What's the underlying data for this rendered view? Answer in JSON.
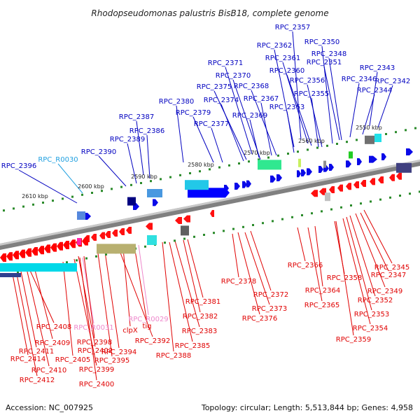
{
  "title": "Rhodopseudomonas palustris BisB18, complete genome",
  "accession": "Accession: NC_007925",
  "summary": "Topology: circular; Length: 5,513,844 bp; Genes: 4,958",
  "colors": {
    "forward_label": "#0000c0",
    "reverse_label": "#e00000",
    "rna_forward": "#20a0e0",
    "rna_reverse": "#ee88cc",
    "backbone": "#808080"
  },
  "scale_labels": [
    "2550 kbp",
    "2560 kbp",
    "2570 kbp",
    "2580 kbp",
    "2590 kbp",
    "2600 kbp",
    "2610 kbp"
  ],
  "top_labels": [
    "RPC_2357",
    "RPC_2350",
    "RPC_2362",
    "RPC_2348",
    "RPC_2361",
    "RPC_2351",
    "RPC_2371",
    "RPC_2360",
    "RPC_2343",
    "RPC_2370",
    "RPC_2356",
    "RPC_2346",
    "RPC_2342",
    "RPC_2375",
    "RPC_2368",
    "RPC_2344",
    "RPC_2374",
    "RPC_2355",
    "RPC_2380",
    "RPC_2367",
    "RPC_2363",
    "RPC_2379",
    "RPC_2369",
    "RPC_2387",
    "RPC_2377",
    "RPC_2386",
    "RPC_2389",
    "RPC_2390",
    "RPC_R0030",
    "RPC_2396"
  ],
  "bottom_labels": [
    "RPC_2345",
    "RPC_2366",
    "RPC_2347",
    "RPC_2358",
    "RPC_2378",
    "RPC_2364",
    "RPC_2349",
    "RPC_2372",
    "RPC_2352",
    "RPC_2381",
    "RPC_2365",
    "RPC_2373",
    "RPC_2353",
    "RPC_2382",
    "RPC_2376",
    "RPC_2354",
    "RPC_R0029",
    "RPC_2383",
    "tig",
    "RPC_2408",
    "RPC_R0031",
    "clpX",
    "RPC_2392",
    "RPC_2359",
    "RPC_2409",
    "RPC_2398",
    "RPC_2385",
    "RPC_2411",
    "RPC_2402",
    "RPC_2394",
    "RPC_2388",
    "RPC_2414",
    "RPC_2405",
    "RPC_2395",
    "RPC_2410",
    "RPC_2399",
    "RPC_2412",
    "RPC_2400"
  ]
}
